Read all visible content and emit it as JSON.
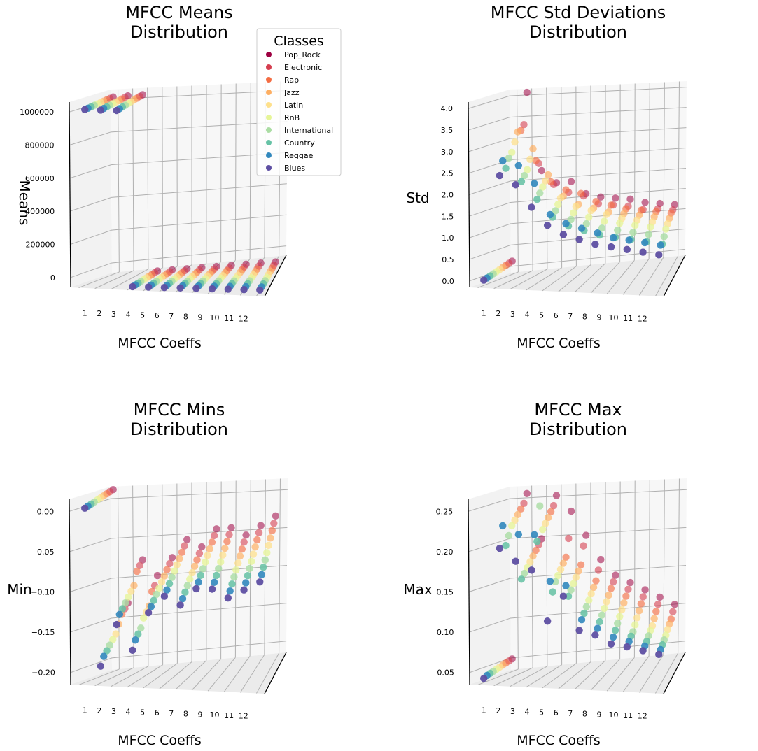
{
  "colors": {
    "Pop_Rock": "#9e0142",
    "Electronic": "#d53e4f",
    "Rap": "#f46d43",
    "Jazz": "#fdae61",
    "Latin": "#fee08b",
    "RnB": "#e6f598",
    "International": "#abdda4",
    "Country": "#66c2a5",
    "Reggae": "#3288bd",
    "Blues": "#5e4fa2"
  },
  "legend": {
    "title": "Classes",
    "entries": [
      "Pop_Rock",
      "Electronic",
      "Rap",
      "Jazz",
      "Latin",
      "RnB",
      "International",
      "Country",
      "Reggae",
      "Blues"
    ]
  },
  "chart_data": [
    {
      "type": "scatter",
      "title": "MFCC Means\nDistribution",
      "xlabel": "MFCC Coeffs",
      "ylabel": "Means",
      "x_ticks": [
        "1",
        "2",
        "3",
        "4",
        "5",
        "6",
        "7",
        "8",
        "9",
        "10",
        "11",
        "12"
      ],
      "y_ticks": [
        "0",
        "200000",
        "400000",
        "600000",
        "800000",
        "1000000"
      ],
      "ylim": [
        0,
        1050000
      ],
      "series": [
        {
          "name": "Pop_Rock",
          "values": [
            1005000,
            1005000,
            1005000,
            110,
            120,
            130,
            140,
            150,
            160,
            170,
            180,
            190
          ]
        },
        {
          "name": "Electronic",
          "values": [
            1004000,
            1004000,
            1004000,
            105,
            115,
            125,
            135,
            145,
            155,
            165,
            175,
            185
          ]
        },
        {
          "name": "Rap",
          "values": [
            1003000,
            1003000,
            1003000,
            100,
            110,
            120,
            130,
            140,
            150,
            160,
            170,
            180
          ]
        },
        {
          "name": "Jazz",
          "values": [
            1002000,
            1002000,
            1002000,
            95,
            105,
            115,
            125,
            135,
            145,
            155,
            165,
            175
          ]
        },
        {
          "name": "Latin",
          "values": [
            1001000,
            1001000,
            1001000,
            90,
            100,
            110,
            120,
            130,
            140,
            150,
            160,
            170
          ]
        },
        {
          "name": "RnB",
          "values": [
            1000000,
            1000000,
            1000000,
            85,
            95,
            105,
            115,
            125,
            135,
            145,
            155,
            165
          ]
        },
        {
          "name": "International",
          "values": [
            999000,
            999000,
            999000,
            80,
            90,
            100,
            110,
            120,
            130,
            140,
            150,
            160
          ]
        },
        {
          "name": "Country",
          "values": [
            998000,
            998000,
            998000,
            75,
            85,
            95,
            105,
            115,
            125,
            135,
            145,
            155
          ]
        },
        {
          "name": "Reggae",
          "values": [
            997000,
            997000,
            997000,
            70,
            80,
            90,
            100,
            110,
            120,
            130,
            140,
            150
          ]
        },
        {
          "name": "Blues",
          "values": [
            996000,
            996000,
            996000,
            65,
            75,
            85,
            95,
            105,
            115,
            125,
            135,
            145
          ]
        }
      ]
    },
    {
      "type": "scatter",
      "title": "MFCC Std Deviations\nDistribution",
      "xlabel": "MFCC Coeffs",
      "ylabel": "Std",
      "x_ticks": [
        "1",
        "2",
        "3",
        "4",
        "5",
        "6",
        "7",
        "8",
        "9",
        "10",
        "11",
        "12"
      ],
      "y_ticks": [
        "0.0",
        "0.5",
        "1.0",
        "1.5",
        "2.0",
        "2.5",
        "3.0",
        "3.5",
        "4.0"
      ],
      "ylim": [
        0,
        4.2
      ],
      "series": [
        {
          "name": "Pop_Rock",
          "values": [
            0.3,
            4.1,
            2.3,
            2.0,
            2.0,
            1.7,
            1.6,
            1.55,
            1.5,
            1.4,
            1.35,
            1.3
          ]
        },
        {
          "name": "Electronic",
          "values": [
            0.28,
            3.4,
            2.5,
            2.0,
            1.8,
            1.7,
            1.5,
            1.45,
            1.4,
            1.3,
            1.3,
            1.25
          ]
        },
        {
          "name": "Rap",
          "values": [
            0.26,
            3.3,
            2.6,
            2.1,
            1.9,
            1.8,
            1.6,
            1.5,
            1.4,
            1.35,
            1.3,
            1.25
          ]
        },
        {
          "name": "Jazz",
          "values": [
            0.24,
            3.3,
            2.9,
            2.3,
            1.8,
            1.6,
            1.5,
            1.4,
            1.35,
            1.3,
            1.25,
            1.2
          ]
        },
        {
          "name": "Latin",
          "values": [
            0.22,
            3.1,
            2.7,
            2.2,
            1.8,
            1.6,
            1.5,
            1.4,
            1.3,
            1.25,
            1.2,
            1.15
          ]
        },
        {
          "name": "RnB",
          "values": [
            0.2,
            2.9,
            2.5,
            2.1,
            1.7,
            1.5,
            1.4,
            1.3,
            1.25,
            1.2,
            1.15,
            1.1
          ]
        },
        {
          "name": "International",
          "values": [
            0.18,
            2.8,
            2.4,
            2.0,
            1.6,
            1.4,
            1.3,
            1.2,
            1.15,
            1.1,
            1.05,
            1.0
          ]
        },
        {
          "name": "Country",
          "values": [
            0.16,
            2.6,
            2.3,
            1.9,
            1.5,
            1.3,
            1.2,
            1.1,
            1.05,
            1.0,
            0.95,
            0.9
          ]
        },
        {
          "name": "Reggae",
          "values": [
            0.14,
            2.8,
            2.7,
            2.3,
            1.6,
            1.4,
            1.3,
            1.2,
            1.1,
            1.05,
            1.0,
            0.95
          ]
        },
        {
          "name": "Blues",
          "values": [
            0.12,
            2.5,
            2.3,
            1.8,
            1.4,
            1.2,
            1.1,
            1.0,
            0.95,
            0.9,
            0.85,
            0.8
          ]
        }
      ]
    },
    {
      "type": "scatter",
      "title": "MFCC Mins\nDistribution",
      "xlabel": "MFCC Coeffs",
      "ylabel": "Min",
      "x_ticks": [
        "1",
        "2",
        "3",
        "4",
        "5",
        "6",
        "7",
        "8",
        "9",
        "10",
        "11",
        "12"
      ],
      "y_ticks": [
        "−0.20",
        "−0.15",
        "−0.10",
        "−0.05",
        "0.00"
      ],
      "ylim": [
        -0.21,
        0.01
      ],
      "series": [
        {
          "name": "Pop_Rock",
          "values": [
            0.006,
            -0.13,
            -0.08,
            -0.1,
            -0.08,
            -0.06,
            -0.07,
            -0.05,
            -0.05,
            -0.06,
            -0.05,
            -0.04
          ]
        },
        {
          "name": "Electronic",
          "values": [
            0.005,
            -0.135,
            -0.085,
            -0.11,
            -0.085,
            -0.065,
            -0.075,
            -0.055,
            -0.055,
            -0.065,
            -0.055,
            -0.045
          ]
        },
        {
          "name": "Rap",
          "values": [
            0.004,
            -0.14,
            -0.09,
            -0.115,
            -0.09,
            -0.07,
            -0.08,
            -0.06,
            -0.06,
            -0.07,
            -0.06,
            -0.05
          ]
        },
        {
          "name": "Jazz",
          "values": [
            0.003,
            -0.15,
            -0.105,
            -0.13,
            -0.095,
            -0.075,
            -0.085,
            -0.065,
            -0.065,
            -0.075,
            -0.065,
            -0.055
          ]
        },
        {
          "name": "Latin",
          "values": [
            0.002,
            -0.16,
            -0.11,
            -0.135,
            -0.1,
            -0.08,
            -0.09,
            -0.07,
            -0.07,
            -0.08,
            -0.07,
            -0.06
          ]
        },
        {
          "name": "RnB",
          "values": [
            0.001,
            -0.165,
            -0.115,
            -0.14,
            -0.105,
            -0.085,
            -0.095,
            -0.075,
            -0.075,
            -0.085,
            -0.075,
            -0.065
          ]
        },
        {
          "name": "International",
          "values": [
            0.0,
            -0.17,
            -0.12,
            -0.15,
            -0.11,
            -0.09,
            -0.1,
            -0.08,
            -0.08,
            -0.09,
            -0.08,
            -0.07
          ]
        },
        {
          "name": "Country",
          "values": [
            -0.001,
            -0.175,
            -0.125,
            -0.155,
            -0.115,
            -0.095,
            -0.105,
            -0.085,
            -0.085,
            -0.095,
            -0.085,
            -0.075
          ]
        },
        {
          "name": "Reggae",
          "values": [
            -0.002,
            -0.18,
            -0.13,
            -0.16,
            -0.12,
            -0.1,
            -0.11,
            -0.09,
            -0.09,
            -0.1,
            -0.09,
            -0.08
          ]
        },
        {
          "name": "Blues",
          "values": [
            -0.003,
            -0.19,
            -0.14,
            -0.17,
            -0.125,
            -0.105,
            -0.115,
            -0.095,
            -0.095,
            -0.105,
            -0.095,
            -0.085
          ]
        }
      ]
    },
    {
      "type": "scatter",
      "title": "MFCC Max\nDistribution",
      "xlabel": "MFCC Coeffs",
      "ylabel": "Max",
      "x_ticks": [
        "1",
        "2",
        "3",
        "4",
        "5",
        "6",
        "7",
        "8",
        "9",
        "10",
        "11",
        "12"
      ],
      "y_ticks": [
        "0.05",
        "0.10",
        "0.15",
        "0.20",
        "0.25"
      ],
      "ylim": [
        0.045,
        0.265
      ],
      "series": [
        {
          "name": "Pop_Rock",
          "values": [
            0.06,
            0.255,
            0.2,
            0.25,
            0.23,
            0.2,
            0.17,
            0.15,
            0.14,
            0.13,
            0.12,
            0.11
          ]
        },
        {
          "name": "Electronic",
          "values": [
            0.059,
            0.245,
            0.195,
            0.24,
            0.2,
            0.19,
            0.16,
            0.145,
            0.135,
            0.125,
            0.115,
            0.105
          ]
        },
        {
          "name": "Rap",
          "values": [
            0.058,
            0.24,
            0.19,
            0.235,
            0.18,
            0.17,
            0.15,
            0.14,
            0.13,
            0.12,
            0.11,
            0.1
          ]
        },
        {
          "name": "Jazz",
          "values": [
            0.057,
            0.235,
            0.185,
            0.23,
            0.175,
            0.165,
            0.145,
            0.135,
            0.125,
            0.115,
            0.105,
            0.098
          ]
        },
        {
          "name": "Latin",
          "values": [
            0.056,
            0.23,
            0.18,
            0.225,
            0.17,
            0.16,
            0.14,
            0.13,
            0.12,
            0.11,
            0.1,
            0.095
          ]
        },
        {
          "name": "RnB",
          "values": [
            0.055,
            0.225,
            0.175,
            0.22,
            0.165,
            0.155,
            0.135,
            0.125,
            0.115,
            0.105,
            0.098,
            0.092
          ]
        },
        {
          "name": "International",
          "values": [
            0.054,
            0.215,
            0.17,
            0.25,
            0.16,
            0.15,
            0.13,
            0.12,
            0.11,
            0.1,
            0.095,
            0.09
          ]
        },
        {
          "name": "Country",
          "values": [
            0.053,
            0.205,
            0.165,
            0.21,
            0.15,
            0.145,
            0.125,
            0.115,
            0.105,
            0.098,
            0.092,
            0.088
          ]
        },
        {
          "name": "Reggae",
          "values": [
            0.052,
            0.23,
            0.22,
            0.22,
            0.165,
            0.16,
            0.12,
            0.11,
            0.1,
            0.095,
            0.09,
            0.086
          ]
        },
        {
          "name": "Blues",
          "values": [
            0.05,
            0.205,
            0.19,
            0.18,
            0.12,
            0.15,
            0.11,
            0.105,
            0.095,
            0.092,
            0.088,
            0.084
          ]
        }
      ]
    }
  ]
}
